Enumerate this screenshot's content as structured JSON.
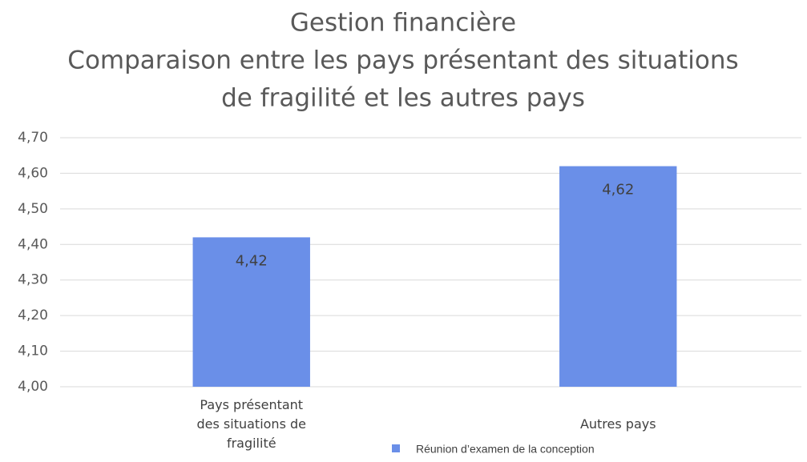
{
  "chart_data": {
    "type": "bar",
    "title": [
      "Gestion financière",
      "Comparaison entre les pays présentant des situations",
      "de fragilité et les autres pays"
    ],
    "categories": [
      "Pays présentant des situations de fragilité",
      "Autres pays"
    ],
    "series": [
      {
        "name": "Réunion d’examen de la conception",
        "color": "#6a8fe8",
        "values": [
          4.42,
          4.62
        ],
        "value_labels": [
          "4,42",
          "4,62"
        ]
      }
    ],
    "ylim": [
      4.0,
      4.7
    ],
    "yticks": [
      {
        "value": 4.0,
        "label": "4,00"
      },
      {
        "value": 4.1,
        "label": "4,10"
      },
      {
        "value": 4.2,
        "label": "4,20"
      },
      {
        "value": 4.3,
        "label": "4,30"
      },
      {
        "value": 4.4,
        "label": "4,40"
      },
      {
        "value": 4.5,
        "label": "4,50"
      },
      {
        "value": 4.6,
        "label": "4,60"
      },
      {
        "value": 4.7,
        "label": "4,70"
      }
    ],
    "grid": true
  }
}
